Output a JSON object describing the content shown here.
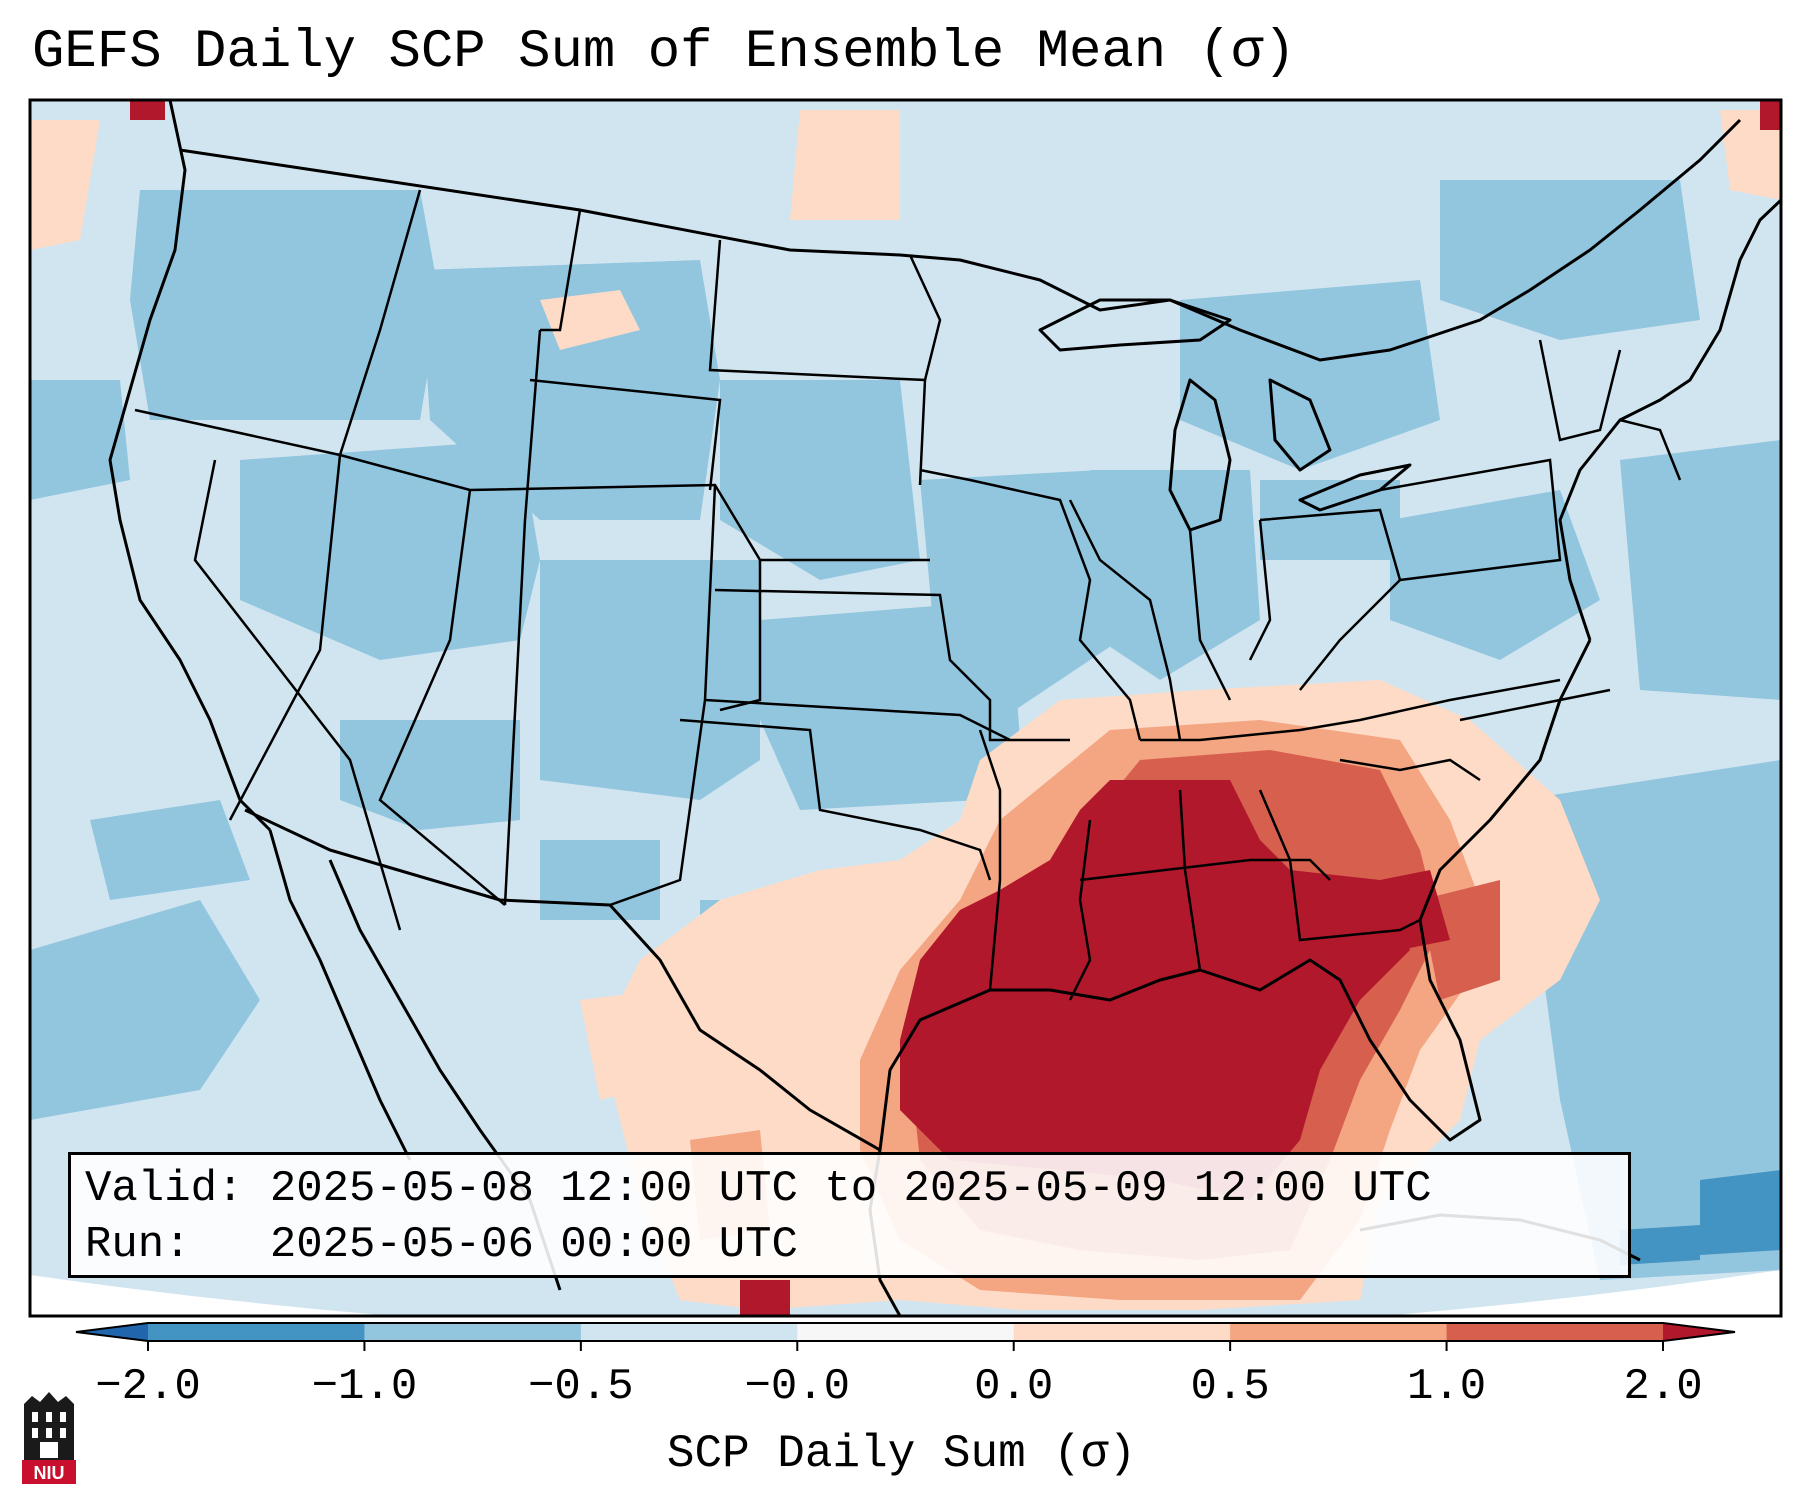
{
  "title": "GEFS Daily SCP Sum of Ensemble Mean (σ)",
  "info": {
    "valid_line": "Valid: 2025-05-08 12:00 UTC to 2025-05-09 12:00 UTC",
    "run_line": "Run:   2025-05-06 00:00 UTC"
  },
  "colorbar": {
    "label": "SCP Daily Sum (σ)",
    "ticks": [
      "−2.0",
      "−1.0",
      "−0.5",
      "−0.0",
      "0.0",
      "0.5",
      "1.0",
      "2.0"
    ],
    "bins": [
      {
        "range": "< -2.0",
        "color": "#2166ac"
      },
      {
        "range": "-2.0 to -1.0",
        "color": "#4393c3"
      },
      {
        "range": "-1.0 to -0.5",
        "color": "#92c5de"
      },
      {
        "range": "-0.5 to -0.0",
        "color": "#d1e5f0"
      },
      {
        "range": "-0.0 to 0.0",
        "color": "#f7f7f7"
      },
      {
        "range": "0.0 to 0.5",
        "color": "#fddbc7"
      },
      {
        "range": "0.5 to 1.0",
        "color": "#f4a582"
      },
      {
        "range": "1.0 to 2.0",
        "color": "#d6604d"
      },
      {
        "range": "> 2.0",
        "color": "#b2182b"
      }
    ]
  },
  "field_summary": {
    "maximum_region": "Central Gulf Coast, Lower Mississippi Valley and northern Gulf of Mexico",
    "secondary_region": "Georgia, northern Florida and Carolinas",
    "background": "Below-normal SCP over western and northern CONUS"
  },
  "logo": {
    "text": "NIU"
  }
}
